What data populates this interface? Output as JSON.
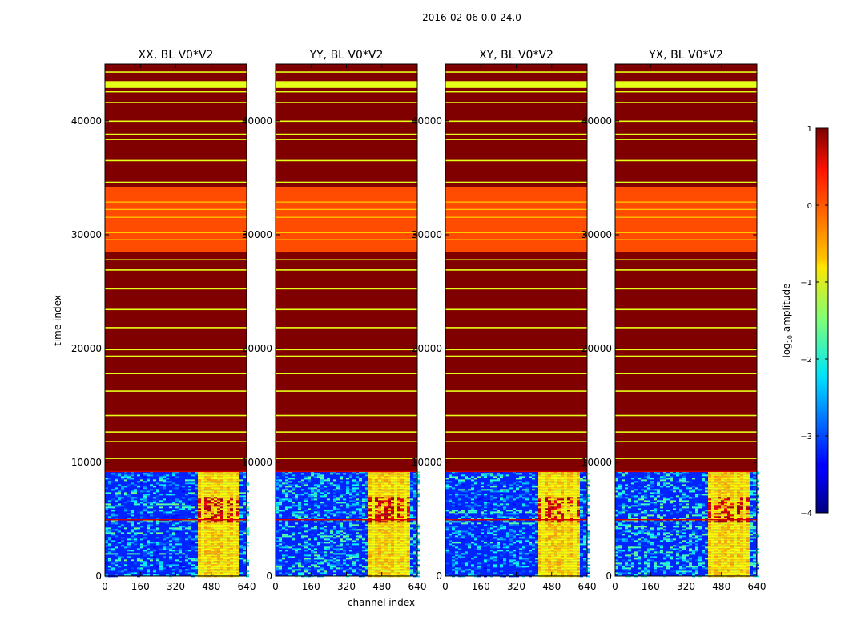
{
  "chart_data": {
    "type": "heatmap",
    "suptitle": "2016-02-06 0.0-24.0",
    "xlabel": "channel index",
    "ylabel": "time index",
    "xlim": [
      0,
      640
    ],
    "ylim": [
      0,
      45000
    ],
    "xticks": [
      0,
      160,
      320,
      480,
      640
    ],
    "yticks": [
      0,
      10000,
      20000,
      30000,
      40000
    ],
    "panels": [
      {
        "title": "XX, BL V0*V2"
      },
      {
        "title": "YY, BL V0*V2"
      },
      {
        "title": "XY, BL V0*V2"
      },
      {
        "title": "YX, BL V0*V2"
      }
    ],
    "colorbar": {
      "label": "log10 amplitude",
      "label_main": "log",
      "label_sub": "10",
      "label_rest": " amplitude",
      "range": [
        -4,
        1
      ],
      "ticks": [
        1,
        0,
        -1,
        -2,
        -3,
        -4
      ],
      "tick_labels": [
        "1",
        "0",
        "−1",
        "−2",
        "−3",
        "−4"
      ],
      "colormap": "jet"
    },
    "regions": {
      "saturated_value": 1,
      "band_value": -1,
      "mid_band_value": 0,
      "noise_value_range": [
        -4,
        -2
      ],
      "bright_channel_block": [
        408,
        600
      ],
      "noise_time_range": [
        0,
        9200
      ],
      "mid_band_time_range": [
        28500,
        34200
      ],
      "wide_band_time_range": [
        42900,
        43500
      ],
      "strong_band_time_range": [
        4800,
        7000
      ]
    }
  }
}
